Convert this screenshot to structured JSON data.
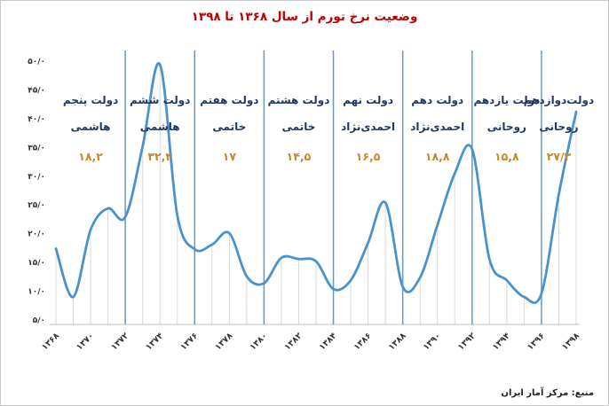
{
  "colors": {
    "title": "#C00000",
    "line": "#4B92CC",
    "divider": "#5B9BD5",
    "droplines": "#D9D9D9",
    "axis_line": "#BFBFBF",
    "axis_text": "#333333",
    "govt_name": "#1F3864",
    "govt_value": "#C8872A"
  },
  "chart_data": {
    "type": "line",
    "title": "وضعیت نرخ تورم از سال ۱۳۶۸ تا ۱۳۹۸",
    "source": "منبع: مرکز آمار ایران",
    "xlabel": "",
    "ylabel": "",
    "ylim": [
      5,
      50
    ],
    "grid": "vertical-droplines",
    "legend": "none",
    "x": [
      1368,
      1369,
      1370,
      1371,
      1372,
      1373,
      1374,
      1375,
      1376,
      1377,
      1378,
      1379,
      1380,
      1381,
      1382,
      1383,
      1384,
      1385,
      1386,
      1387,
      1388,
      1389,
      1390,
      1391,
      1392,
      1393,
      1394,
      1395,
      1396,
      1397,
      1398
    ],
    "values": [
      17.4,
      9.0,
      20.7,
      24.4,
      22.9,
      35.2,
      49.4,
      23.2,
      17.3,
      18.1,
      20.1,
      12.6,
      11.4,
      15.8,
      15.6,
      15.2,
      10.4,
      11.9,
      18.4,
      25.4,
      10.8,
      12.4,
      21.5,
      30.5,
      34.7,
      15.6,
      11.9,
      9.0,
      9.6,
      26.9,
      41.2
    ],
    "tick_years": [
      1368,
      1370,
      1372,
      1374,
      1376,
      1378,
      1380,
      1382,
      1384,
      1386,
      1388,
      1390,
      1392,
      1394,
      1396,
      1398
    ],
    "tick_labels": [
      "۱۳۶۸",
      "۱۳۷۰",
      "۱۳۷۲",
      "۱۳۷۴",
      "۱۳۷۶",
      "۱۳۷۸",
      "۱۳۸۰",
      "۱۳۸۲",
      "۱۳۸۴",
      "۱۳۸۶",
      "۱۳۸۸",
      "۱۳۹۰",
      "۱۳۹۲",
      "۱۳۹۴",
      "۱۳۹۶",
      "۱۳۹۸"
    ],
    "y_ticks": [
      50,
      45,
      40,
      35,
      30,
      25,
      20,
      15,
      10,
      5
    ],
    "y_tick_labels": [
      "۵۰/۰",
      "۴۵/۰",
      "۴۰/۰",
      "۳۵/۰",
      "۳۰/۰",
      "۲۵/۰",
      "۲۰/۰",
      "۱۵/۰",
      "۱۰/۰",
      "۵/۰"
    ],
    "governments": [
      {
        "from": 1368,
        "to": 1372,
        "name_line1": "دولت پنجم",
        "name_line2": "هاشمی",
        "value": "۱۸,۲"
      },
      {
        "from": 1372,
        "to": 1376,
        "name_line1": "دولت ششم",
        "name_line2": "هاشمی",
        "value": "۳۲,۴"
      },
      {
        "from": 1376,
        "to": 1380,
        "name_line1": "دولت هفتم",
        "name_line2": "خاتمی",
        "value": "۱۷"
      },
      {
        "from": 1380,
        "to": 1384,
        "name_line1": "دولت هشتم",
        "name_line2": "خاتمی",
        "value": "۱۴,۵"
      },
      {
        "from": 1384,
        "to": 1388,
        "name_line1": "دولت نهم",
        "name_line2": "احمدی‌نژاد",
        "value": "۱۶,۵"
      },
      {
        "from": 1388,
        "to": 1392,
        "name_line1": "دولت دهم",
        "name_line2": "احمدی‌نژاد",
        "value": "۱۸,۸"
      },
      {
        "from": 1392,
        "to": 1396,
        "name_line1": "دولت یازدهم",
        "name_line2": "روحانی",
        "value": "۱۵,۸"
      },
      {
        "from": 1396,
        "to": 1398,
        "name_line1": "دولت‌دوازدهم",
        "name_line2": "روحانی",
        "value": "۲۷/۳"
      }
    ]
  }
}
